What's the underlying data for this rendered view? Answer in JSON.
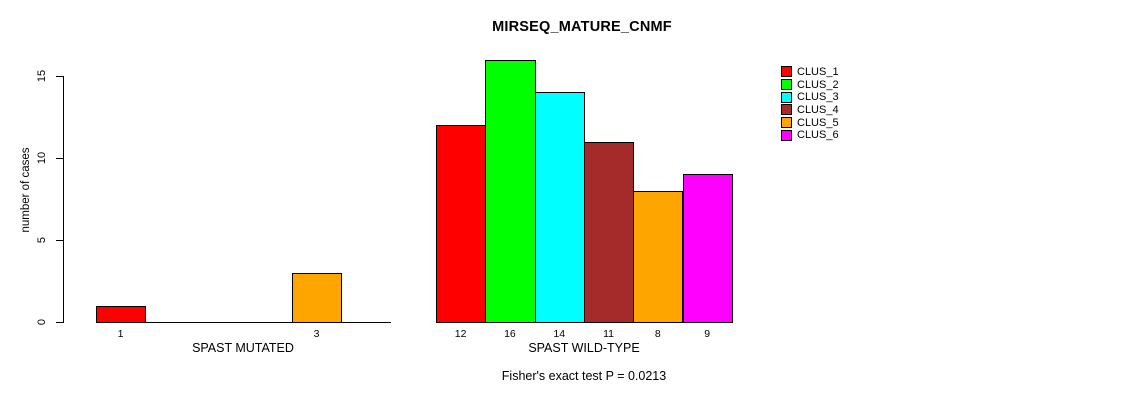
{
  "chart_data": {
    "type": "bar",
    "title": "MIRSEQ_MATURE_CNMF",
    "ylabel": "number of cases",
    "ylim": [
      0,
      15
    ],
    "yticks": [
      0,
      5,
      10,
      15
    ],
    "grid": false,
    "legend_position": "top-right",
    "background": "#FFFFFF",
    "text_color": "#000000",
    "clusters": [
      {
        "name": "CLUS_1",
        "color": "#FF0000"
      },
      {
        "name": "CLUS_2",
        "color": "#00FF00"
      },
      {
        "name": "CLUS_3",
        "color": "#00FFFF"
      },
      {
        "name": "CLUS_4",
        "color": "#A52A2A"
      },
      {
        "name": "CLUS_5",
        "color": "#FFA500"
      },
      {
        "name": "CLUS_6",
        "color": "#FF00FF"
      }
    ],
    "groups": [
      {
        "label": "SPAST MUTATED",
        "values": [
          1,
          0,
          0,
          0,
          3,
          0
        ]
      },
      {
        "label": "SPAST WILD-TYPE",
        "values": [
          12,
          16,
          14,
          11,
          8,
          9
        ]
      }
    ],
    "zero_value_labels_hidden": true,
    "annotation": "Fisher's exact test P = 0.0213"
  }
}
